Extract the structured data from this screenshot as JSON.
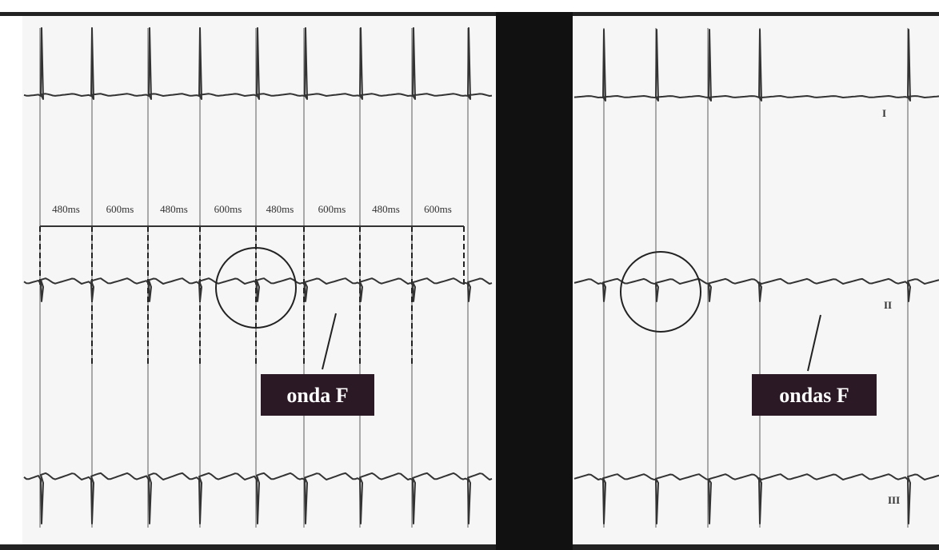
{
  "intervals": [
    "480ms",
    "600ms",
    "480ms",
    "600ms",
    "480ms",
    "600ms",
    "480ms",
    "600ms"
  ],
  "annotations": [
    {
      "label": "onda F"
    },
    {
      "label": "ondas F"
    }
  ],
  "leads": [
    "I",
    "II",
    "III"
  ]
}
